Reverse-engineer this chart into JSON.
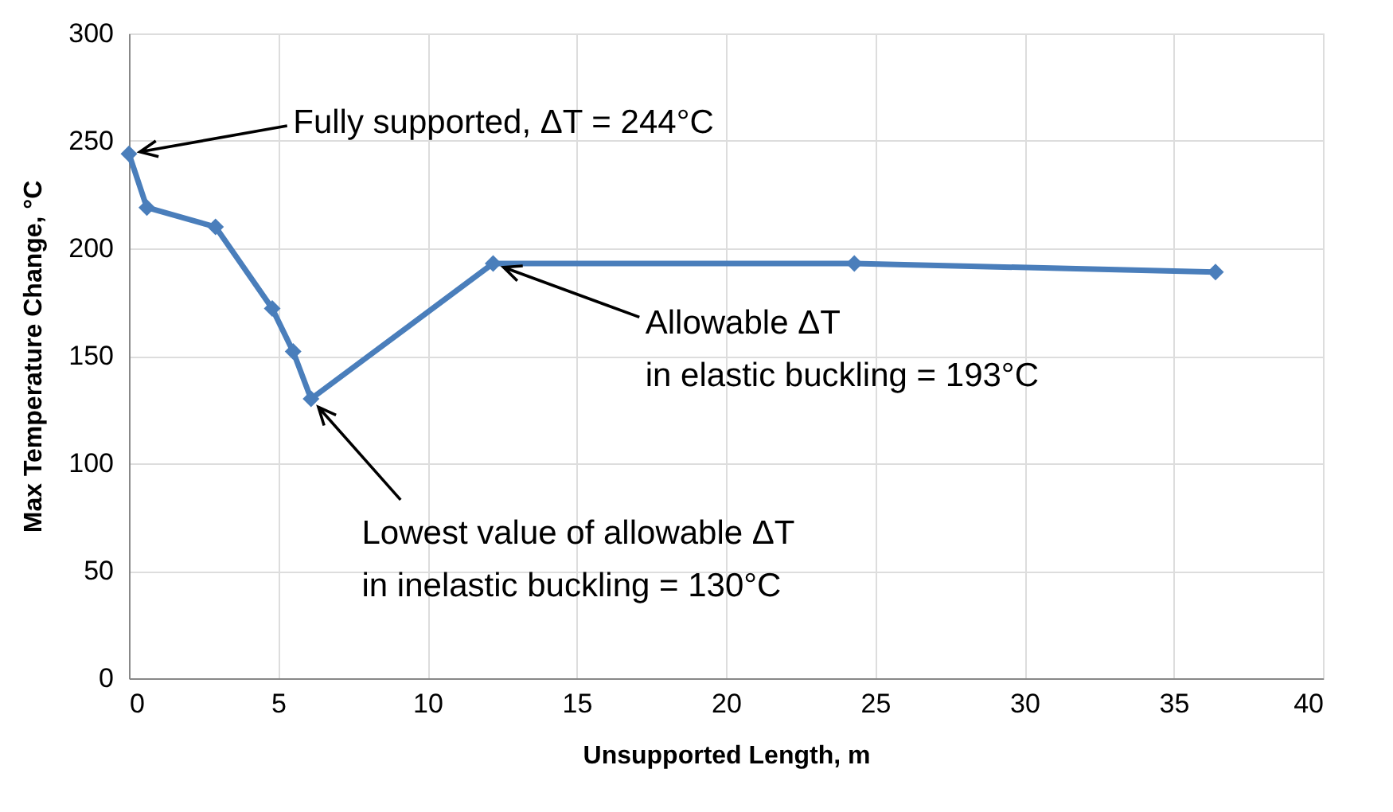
{
  "chart_data": {
    "type": "line",
    "xlabel": "Unsupported Length, m",
    "ylabel": "Max Temperature Change, °C",
    "x": [
      0,
      0.6,
      2.9,
      4.8,
      5.5,
      6.1,
      12.2,
      24.3,
      36.4
    ],
    "series": [
      {
        "color": "#4a7ebb",
        "values": [
          244,
          219,
          210,
          172,
          152,
          130,
          193,
          193,
          189
        ]
      }
    ],
    "xlim": [
      0,
      40
    ],
    "xticks": [
      0,
      5,
      10,
      15,
      20,
      25,
      30,
      35,
      40
    ],
    "ylim": [
      0,
      300
    ],
    "yticks": [
      0,
      50,
      100,
      150,
      200,
      250,
      300
    ],
    "grid": true,
    "marker": "diamond",
    "line_style": "solid",
    "annotations": [
      {
        "text": "Fully supported, ΔT = 244°C",
        "x": 0,
        "y": 244
      },
      {
        "text": "Allowable ΔT\nin elastic buckling = 193°C",
        "x": 12.2,
        "y": 193
      },
      {
        "text": "Lowest value of allowable ΔT\nin inelastic buckling = 130°C",
        "x": 6.1,
        "y": 130
      }
    ]
  }
}
